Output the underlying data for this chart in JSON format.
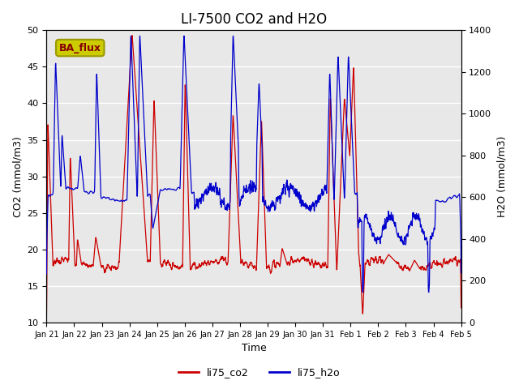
{
  "title": "LI-7500 CO2 and H2O",
  "xlabel": "Time",
  "ylabel_left": "CO2 (mmol/m3)",
  "ylabel_right": "H2O (mmol/m3)",
  "ylim_left": [
    10,
    50
  ],
  "ylim_right": [
    0,
    1400
  ],
  "yticks_left": [
    10,
    15,
    20,
    25,
    30,
    35,
    40,
    45,
    50
  ],
  "yticks_right": [
    0,
    200,
    400,
    600,
    800,
    1000,
    1200,
    1400
  ],
  "legend_labels": [
    "li75_co2",
    "li75_h2o"
  ],
  "annotation_text": "BA_flux",
  "annotation_bg": "#cccc00",
  "annotation_border": "#999900",
  "bg_color": "#e8e8e8",
  "grid_color": "white",
  "line_color_co2": "#cc0000",
  "line_color_h2o": "#0000cc",
  "title_fontsize": 12,
  "axis_fontsize": 9,
  "tick_fontsize": 8,
  "x_tick_labels": [
    "Jan 21",
    "Jan 22",
    "Jan 23",
    "Jan 24",
    "Jan 25",
    "Jan 26",
    "Jan 27",
    "Jan 28",
    "Jan 29",
    "Jan 30",
    "Jan 31",
    "Feb 1",
    "Feb 2",
    "Feb 3",
    "Feb 4",
    "Feb 5"
  ],
  "n_points": 2000,
  "seed": 7
}
